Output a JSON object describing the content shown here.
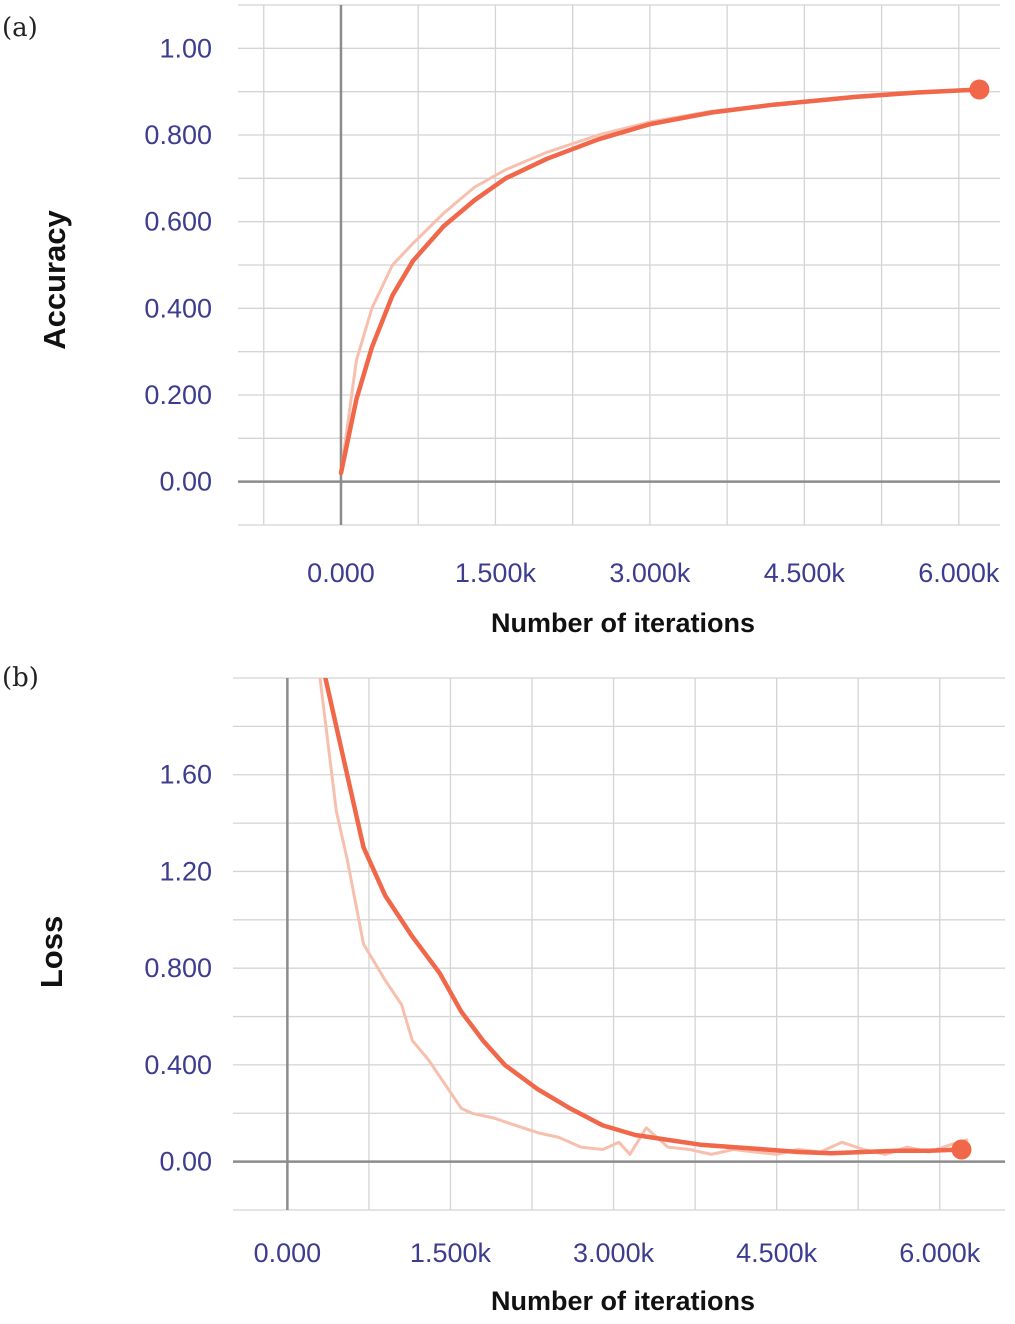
{
  "colors": {
    "line": "#f0674a",
    "raw_line": "#f7bfae",
    "grid": "#d4d4d4",
    "zero_axis": "#8c8c8c"
  },
  "chart_data": [
    {
      "panel_label": "(a)",
      "type": "line",
      "xlabel": "Number of iterations",
      "ylabel": "Accuracy",
      "xlim": [
        -1000,
        6400
      ],
      "ylim": [
        -0.1,
        1.1
      ],
      "grid": true,
      "x_tick_values": [
        0,
        1500,
        3000,
        4500,
        6000
      ],
      "x_tick_labels": [
        "0.000",
        "1.500k",
        "3.000k",
        "4.500k",
        "6.000k"
      ],
      "y_tick_values": [
        0,
        0.2,
        0.4,
        0.6,
        0.8,
        1.0
      ],
      "y_tick_labels": [
        "0.00",
        "0.200",
        "0.400",
        "0.600",
        "0.800",
        "1.00"
      ],
      "series": [
        {
          "role": "raw",
          "x": [
            0,
            150,
            300,
            500,
            700,
            1000,
            1300,
            1600,
            2000,
            2500,
            3000,
            3600,
            4200,
            5000,
            5600,
            6200
          ],
          "y": [
            0.02,
            0.28,
            0.4,
            0.5,
            0.55,
            0.62,
            0.68,
            0.72,
            0.76,
            0.8,
            0.83,
            0.855,
            0.87,
            0.89,
            0.9,
            0.905
          ]
        },
        {
          "role": "smoothed",
          "x": [
            0,
            150,
            300,
            500,
            700,
            1000,
            1300,
            1600,
            2000,
            2500,
            3000,
            3600,
            4200,
            5000,
            5600,
            6200
          ],
          "y": [
            0.02,
            0.19,
            0.31,
            0.43,
            0.51,
            0.59,
            0.65,
            0.7,
            0.745,
            0.79,
            0.825,
            0.852,
            0.87,
            0.888,
            0.898,
            0.905
          ]
        }
      ],
      "last_point": {
        "x": 6200,
        "y": 0.905
      }
    },
    {
      "panel_label": "(b)",
      "type": "line",
      "xlabel": "Number of iterations",
      "ylabel": "Loss",
      "xlim": [
        -500,
        6600
      ],
      "ylim": [
        -0.2,
        2.0
      ],
      "grid": true,
      "x_tick_values": [
        0,
        1500,
        3000,
        4500,
        6000
      ],
      "x_tick_labels": [
        "0.000",
        "1.500k",
        "3.000k",
        "4.500k",
        "6.000k"
      ],
      "y_tick_values": [
        0,
        0.4,
        0.8,
        1.2,
        1.6
      ],
      "y_tick_labels": [
        "0.00",
        "0.400",
        "0.800",
        "1.20",
        "1.60"
      ],
      "series": [
        {
          "role": "raw",
          "x": [
            300,
            450,
            550,
            700,
            900,
            1050,
            1150,
            1300,
            1450,
            1600,
            1700,
            1900,
            2100,
            2300,
            2500,
            2700,
            2900,
            3050,
            3150,
            3300,
            3500,
            3700,
            3900,
            4100,
            4300,
            4500,
            4700,
            4900,
            5100,
            5300,
            5500,
            5700,
            5900,
            6100,
            6250
          ],
          "y": [
            2.0,
            1.45,
            1.25,
            0.9,
            0.75,
            0.65,
            0.5,
            0.42,
            0.32,
            0.22,
            0.2,
            0.18,
            0.15,
            0.12,
            0.1,
            0.06,
            0.05,
            0.08,
            0.03,
            0.14,
            0.06,
            0.05,
            0.03,
            0.05,
            0.04,
            0.03,
            0.05,
            0.04,
            0.08,
            0.05,
            0.03,
            0.06,
            0.04,
            0.07,
            0.09
          ]
        },
        {
          "role": "smoothed",
          "x": [
            350,
            500,
            700,
            900,
            1150,
            1400,
            1600,
            1800,
            2000,
            2300,
            2600,
            2900,
            3200,
            3500,
            3800,
            4100,
            4400,
            4700,
            5000,
            5300,
            5600,
            5900,
            6200
          ],
          "y": [
            2.0,
            1.7,
            1.3,
            1.1,
            0.93,
            0.78,
            0.62,
            0.5,
            0.4,
            0.3,
            0.22,
            0.15,
            0.11,
            0.09,
            0.07,
            0.06,
            0.05,
            0.04,
            0.035,
            0.04,
            0.045,
            0.045,
            0.05
          ]
        }
      ],
      "last_point": {
        "x": 6200,
        "y": 0.05
      }
    }
  ]
}
